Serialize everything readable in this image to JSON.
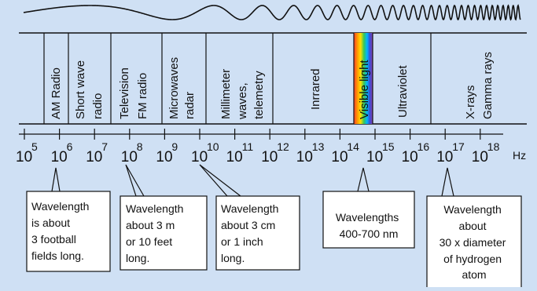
{
  "colors": {
    "background": "#cfe0f4",
    "ink": "#111111",
    "box_fill": "#ffffff",
    "visible_spectrum": [
      "#ff3b30",
      "#ff9500",
      "#ffe000",
      "#34c759",
      "#00b7ff",
      "#3a4bd6",
      "#8e44ad"
    ]
  },
  "icons": {
    "wave": "sine-wave-increasing-frequency",
    "pointer": "callout-leader-lines"
  },
  "bands": [
    {
      "id": "am",
      "lines": [
        "AM Radio"
      ]
    },
    {
      "id": "shortwave",
      "lines": [
        "Short wave",
        "radio"
      ]
    },
    {
      "id": "tvfm",
      "lines": [
        "Television",
        "FM radio"
      ]
    },
    {
      "id": "microwave",
      "lines": [
        "Microwaves",
        "radar"
      ]
    },
    {
      "id": "millimeter",
      "lines": [
        "Millimeter",
        "waves,",
        "telemetry"
      ]
    },
    {
      "id": "infrared",
      "lines": [
        "Inrrared"
      ]
    },
    {
      "id": "visible",
      "lines": [
        "Visible light"
      ]
    },
    {
      "id": "uv",
      "lines": [
        "Ultraviolet"
      ]
    },
    {
      "id": "xray",
      "lines": [
        "X-rays",
        "Gamma rays"
      ]
    }
  ],
  "axis": {
    "base": "10",
    "exponents": [
      "5",
      "6",
      "7",
      "8",
      "9",
      "10",
      "11",
      "12",
      "13",
      "14",
      "15",
      "16",
      "17",
      "18"
    ],
    "unit": "Hz"
  },
  "notes": [
    {
      "id": "am-note",
      "lines": [
        "Wavelength",
        "is about",
        "3 football",
        "fields long."
      ]
    },
    {
      "id": "tv-note",
      "lines": [
        "Wavelength",
        "about 3 m",
        "or 10 feet",
        "long."
      ]
    },
    {
      "id": "micro-note",
      "lines": [
        "Wavelength",
        "about 3 cm",
        "or 1 inch",
        "long."
      ]
    },
    {
      "id": "visible-note",
      "lines": [
        "Wavelengths",
        "400-700 nm"
      ]
    },
    {
      "id": "xray-note",
      "lines": [
        "Wavelength",
        "about",
        "30 x diameter",
        "of hydrogen",
        "atom"
      ]
    }
  ]
}
